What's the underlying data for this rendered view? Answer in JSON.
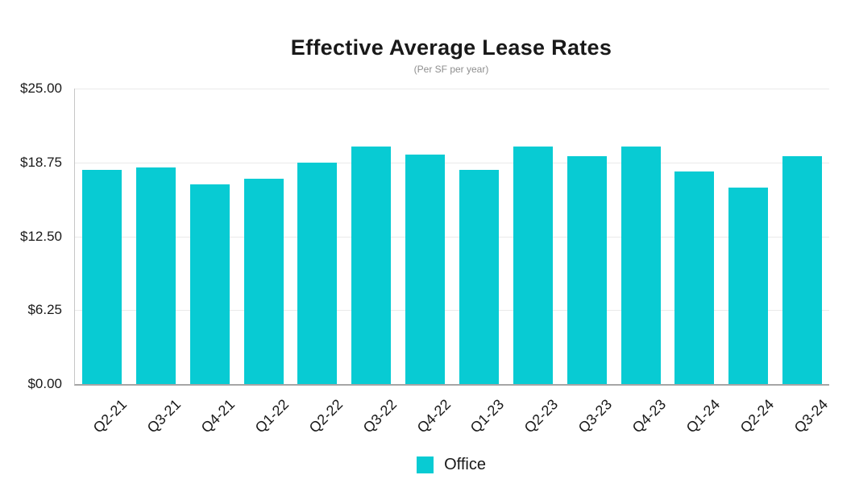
{
  "chart_data": {
    "type": "bar",
    "title": "Effective Average Lease Rates",
    "subtitle": "(Per SF per year)",
    "categories": [
      "Q2-21",
      "Q3-21",
      "Q4-21",
      "Q1-22",
      "Q2-22",
      "Q3-22",
      "Q4-22",
      "Q1-23",
      "Q2-23",
      "Q3-23",
      "Q4-23",
      "Q1-24",
      "Q2-24",
      "Q3-24"
    ],
    "series": [
      {
        "name": "Office",
        "color": "#08cbd3",
        "values": [
          18.1,
          18.3,
          16.9,
          17.4,
          18.7,
          20.1,
          19.4,
          18.1,
          20.1,
          19.3,
          20.1,
          18.0,
          16.6,
          19.3
        ]
      }
    ],
    "xlabel": "",
    "ylabel": "",
    "ylim": [
      0,
      25
    ],
    "y_ticks": [
      {
        "value": 0,
        "label": "$0.00"
      },
      {
        "value": 6.25,
        "label": "$6.25"
      },
      {
        "value": 12.5,
        "label": "$12.50"
      },
      {
        "value": 18.75,
        "label": "$18.75"
      },
      {
        "value": 25,
        "label": "$25.00"
      }
    ],
    "grid": true,
    "legend_position": "bottom"
  }
}
